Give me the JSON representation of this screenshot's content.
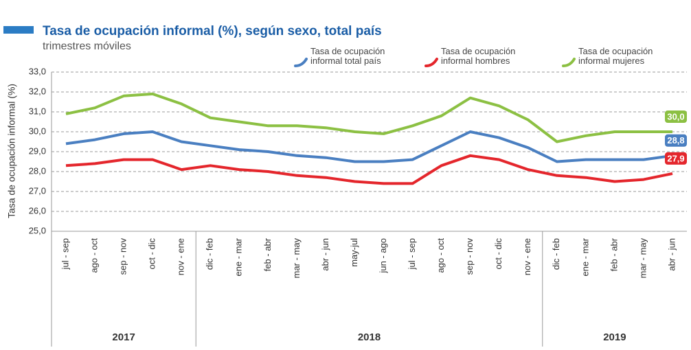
{
  "chart_data": {
    "type": "line",
    "title": "Tasa de ocupación informal (%), según sexo, total país",
    "subtitle": "trimestres móviles",
    "y_label": "Tasa de ocupación informal (%)",
    "categories": [
      "jul - sep",
      "ago - oct",
      "sep - nov",
      "oct - dic",
      "nov - ene",
      "dic - feb",
      "ene - mar",
      "feb - abr",
      "mar - may",
      "abr - jun",
      "may-jul",
      "jun - ago",
      "jul - sep",
      "ago - oct",
      "sep - nov",
      "oct - dic",
      "nov - ene",
      "dic - feb",
      "ene - mar",
      "feb - abr",
      "mar - may",
      "abr - jun"
    ],
    "year_groups": [
      {
        "label": "2017",
        "span": 5
      },
      {
        "label": "2018",
        "span": 12
      },
      {
        "label": "2019",
        "span": 5
      }
    ],
    "series": [
      {
        "name": "Tasa de ocupación informal total país",
        "color": "#4a7fc1",
        "values": [
          29.4,
          29.6,
          29.9,
          30.0,
          29.5,
          29.3,
          29.1,
          29.0,
          28.8,
          28.7,
          28.5,
          28.5,
          28.6,
          29.3,
          30.0,
          29.7,
          29.2,
          28.5,
          28.6,
          28.6,
          28.6,
          28.8
        ],
        "value_labels": [
          null,
          null,
          null,
          null,
          null,
          null,
          null,
          null,
          null,
          null,
          null,
          null,
          null,
          null,
          null,
          null,
          null,
          null,
          null,
          null,
          null,
          "28,8"
        ]
      },
      {
        "name": "Tasa de ocupación informal hombres",
        "color": "#e4262c",
        "values": [
          28.3,
          28.4,
          28.6,
          28.6,
          28.1,
          28.3,
          28.1,
          28.0,
          27.8,
          27.7,
          27.5,
          27.4,
          27.4,
          28.3,
          28.8,
          28.6,
          28.1,
          27.8,
          27.7,
          27.5,
          27.6,
          27.9
        ],
        "value_labels": [
          null,
          null,
          null,
          null,
          null,
          null,
          null,
          null,
          null,
          null,
          null,
          null,
          null,
          null,
          null,
          null,
          null,
          null,
          null,
          null,
          null,
          "27,9"
        ]
      },
      {
        "name": "Tasa de ocupación informal mujeres",
        "color": "#8cc043",
        "values": [
          30.9,
          31.2,
          31.8,
          31.9,
          31.4,
          30.7,
          30.5,
          30.3,
          30.3,
          30.2,
          30.0,
          29.9,
          30.3,
          30.8,
          31.7,
          31.3,
          30.6,
          29.5,
          29.8,
          30.0,
          30.0,
          30.0
        ],
        "value_labels": [
          null,
          null,
          null,
          null,
          null,
          null,
          null,
          null,
          null,
          null,
          null,
          null,
          null,
          null,
          null,
          null,
          null,
          null,
          null,
          null,
          null,
          "30,0"
        ]
      }
    ],
    "ylim": [
      25,
      33
    ],
    "yticks": [
      {
        "value": 25,
        "label": "25,0"
      },
      {
        "value": 26,
        "label": "26,0"
      },
      {
        "value": 27,
        "label": "27,0"
      },
      {
        "value": 28,
        "label": "28,0"
      },
      {
        "value": 29,
        "label": "29,0"
      },
      {
        "value": 30,
        "label": "30,0"
      },
      {
        "value": 31,
        "label": "31,0"
      },
      {
        "value": 32,
        "label": "32,0"
      },
      {
        "value": 33,
        "label": "33,0"
      }
    ],
    "grid": true
  }
}
